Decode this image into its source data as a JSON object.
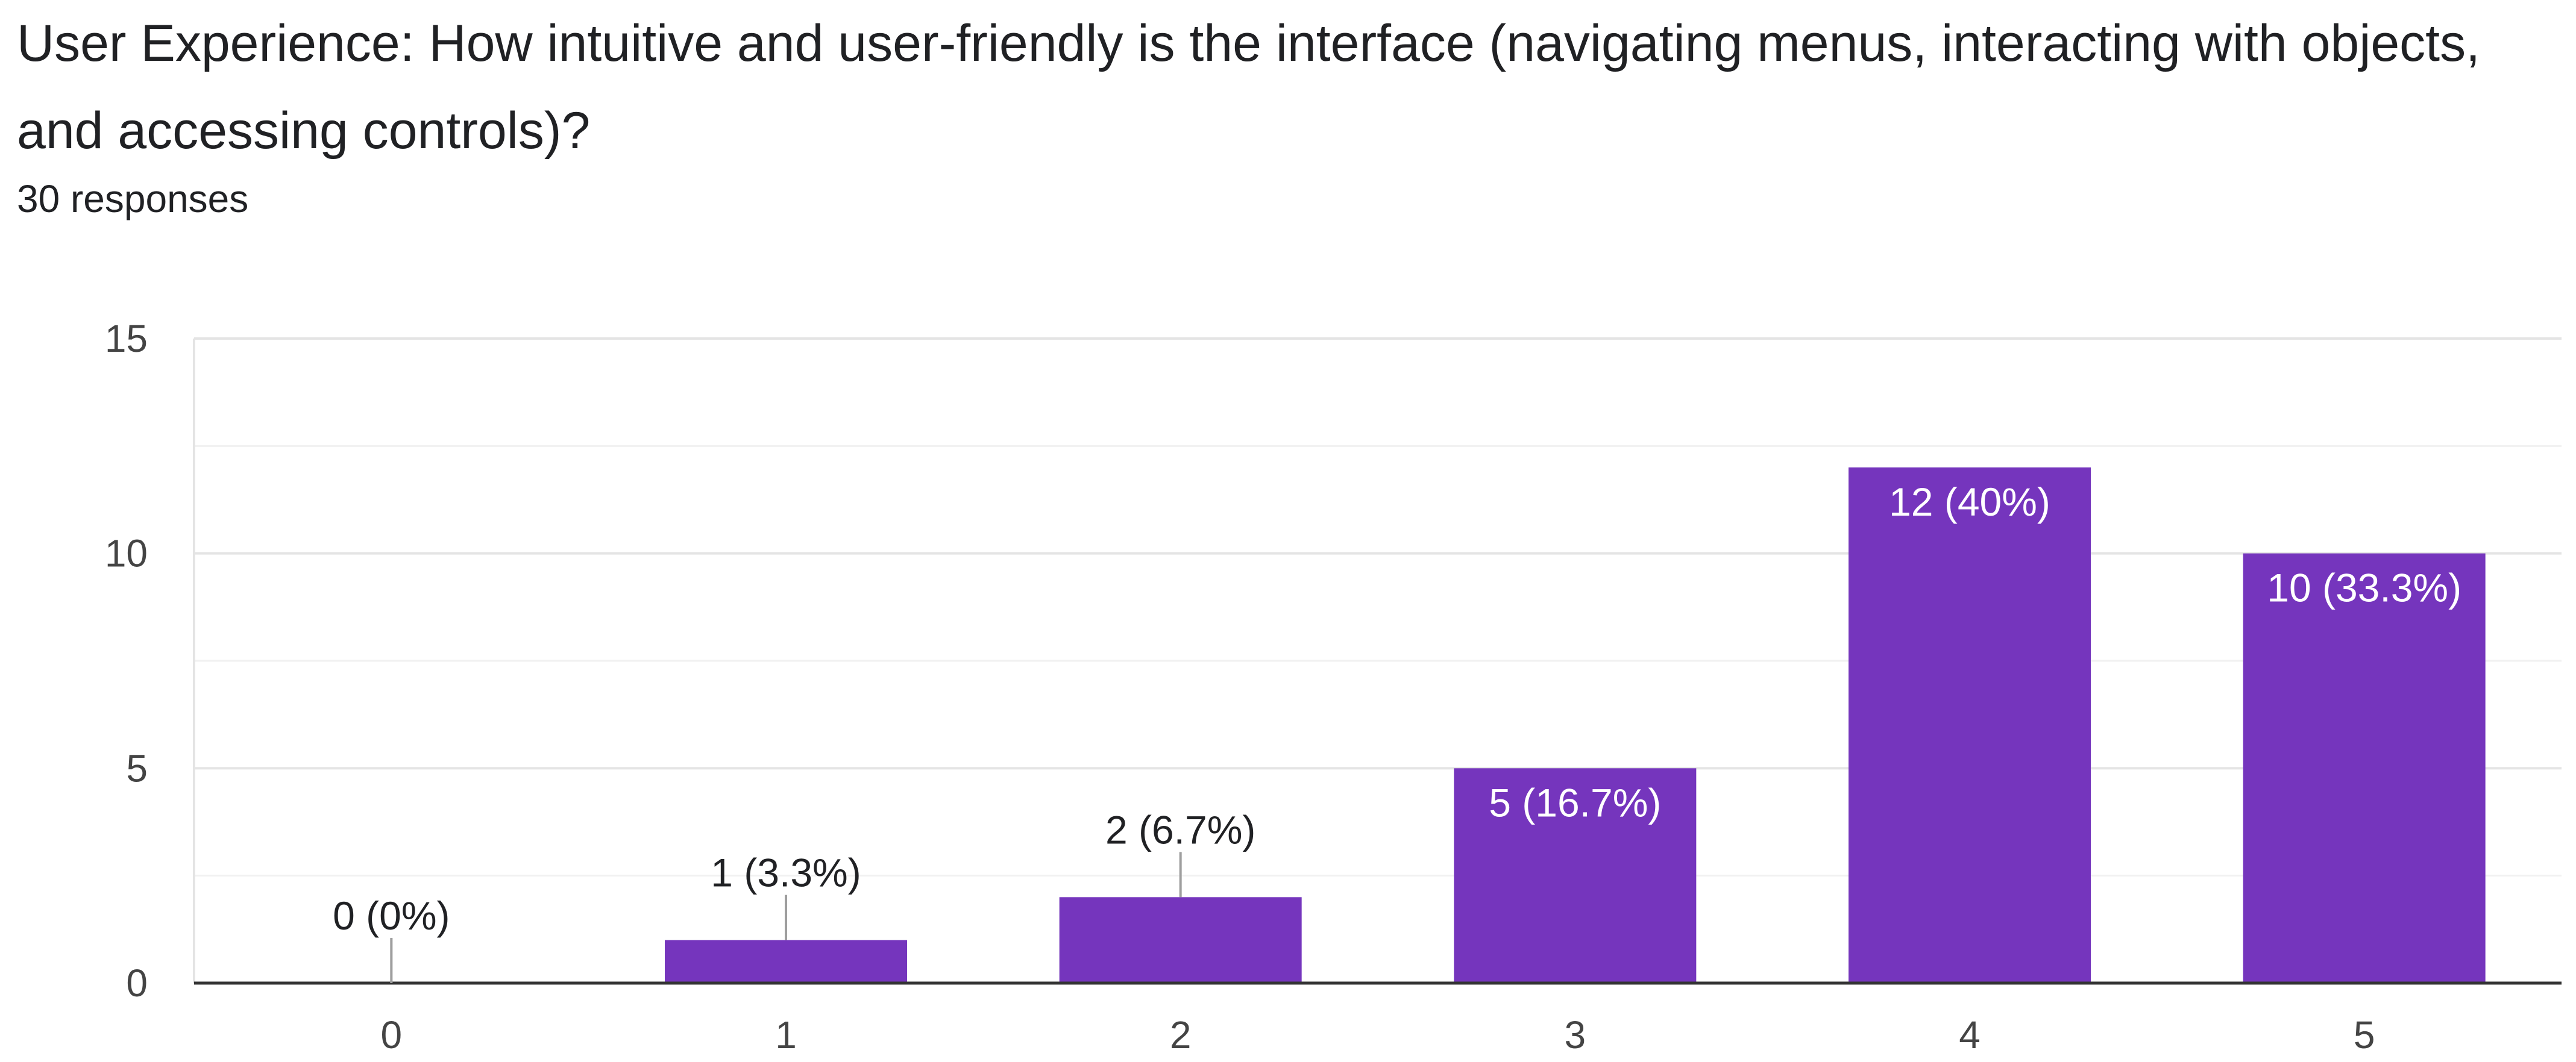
{
  "question": {
    "title": "User Experience: How intuitive and user-friendly is the interface (navigating menus, interacting with objects, and accessing controls)?",
    "responses": "30 responses"
  },
  "colors": {
    "bar": "#7535bd",
    "axis": "#333333",
    "grid": "#e4e4e4",
    "minor_grid": "#f1f1f1",
    "text": "#202124",
    "tick_text": "#444444",
    "inside_label": "#ffffff"
  },
  "chart_data": {
    "type": "bar",
    "title": "",
    "xlabel": "",
    "ylabel": "",
    "categories": [
      "0",
      "1",
      "2",
      "3",
      "4",
      "5"
    ],
    "values": [
      0,
      1,
      2,
      5,
      12,
      10
    ],
    "labels": [
      "0 (0%)",
      "1 (3.3%)",
      "2 (6.7%)",
      "5 (16.7%)",
      "12 (40%)",
      "10 (33.3%)"
    ],
    "ylim": [
      0,
      15
    ],
    "yticks": [
      "0",
      "5",
      "10",
      "15"
    ],
    "grid": true
  }
}
